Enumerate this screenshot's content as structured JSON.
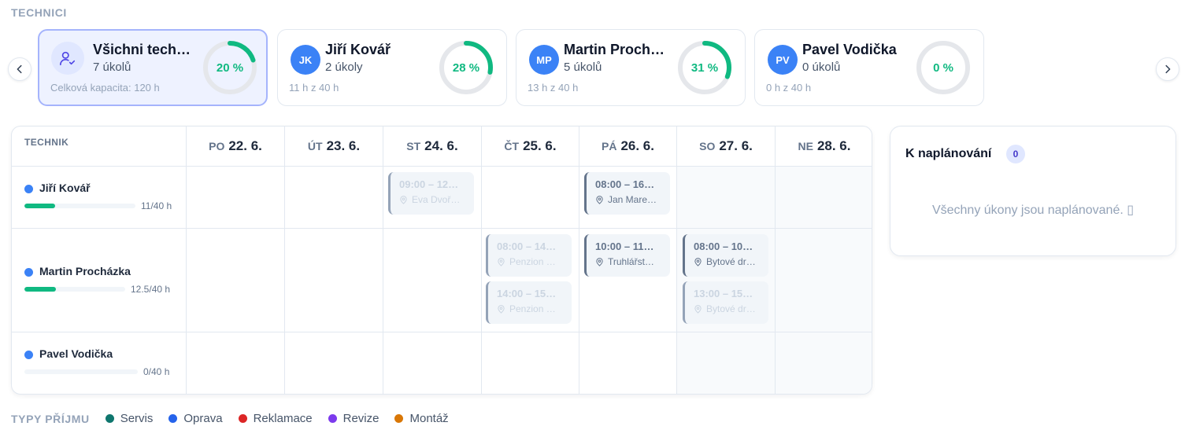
{
  "section_label": "TECHNICI",
  "colors": {
    "accent": "#3b82f6",
    "progress": "#10b981",
    "ring_track": "#e5e7eb"
  },
  "tech_cards": [
    {
      "name": "Všichni tech…",
      "tasks": "7 úkolů",
      "hours": "Celková kapacita: 120 h",
      "percent_label": "20 %",
      "percent": 20,
      "avatar": "users-check-icon"
    },
    {
      "name": "Jiří Kovář",
      "initials": "JK",
      "tasks": "2 úkoly",
      "hours": "11 h z 40 h",
      "percent_label": "28 %",
      "percent": 28
    },
    {
      "name": "Martin Prochá…",
      "initials": "MP",
      "tasks": "5 úkolů",
      "hours": "13 h z 40 h",
      "percent_label": "31 %",
      "percent": 31
    },
    {
      "name": "Pavel Vodička",
      "initials": "PV",
      "tasks": "0 úkolů",
      "hours": "0 h z 40 h",
      "percent_label": "0 %",
      "percent": 0
    }
  ],
  "schedule": {
    "tech_column_header": "TECHNIK",
    "days": [
      {
        "dow": "PO",
        "date": "22. 6."
      },
      {
        "dow": "ÚT",
        "date": "23. 6."
      },
      {
        "dow": "ST",
        "date": "24. 6."
      },
      {
        "dow": "ČT",
        "date": "25. 6."
      },
      {
        "dow": "PÁ",
        "date": "26. 6."
      },
      {
        "dow": "SO",
        "date": "27. 6."
      },
      {
        "dow": "NE",
        "date": "28. 6."
      }
    ],
    "rows": [
      {
        "name": "Jiří Kovář",
        "capacity": "11/40 h",
        "fill": 0.275
      },
      {
        "name": "Martin Procházka",
        "capacity": "12.5/40 h",
        "fill": 0.3125
      },
      {
        "name": "Pavel Vodička",
        "capacity": "0/40 h",
        "fill": 0
      }
    ],
    "events": [
      {
        "time": "09:00 – 12…",
        "location": "Eva Dvoř…"
      },
      {
        "time": "08:00 – 16…",
        "location": "Jan Mare…"
      },
      {
        "time": "08:00 – 14…",
        "location": "Penzion …"
      },
      {
        "time": "14:00 – 15…",
        "location": "Penzion …"
      },
      {
        "time": "10:00 – 11…",
        "location": "Truhlářst…"
      },
      {
        "time": "08:00 – 10…",
        "location": "Bytové dr…"
      },
      {
        "time": "13:00 – 15…",
        "location": "Bytové dr…"
      }
    ]
  },
  "unplanned": {
    "title": "K naplánování",
    "count": "0",
    "empty_text": "Všechny úkony jsou naplánované. ▯"
  },
  "legend": {
    "title": "TYPY PŘÍJMU",
    "items": [
      {
        "label": "Servis",
        "color": "#0f766e"
      },
      {
        "label": "Oprava",
        "color": "#2563eb"
      },
      {
        "label": "Reklamace",
        "color": "#dc2626"
      },
      {
        "label": "Revize",
        "color": "#7c3aed"
      },
      {
        "label": "Montáž",
        "color": "#d97706"
      }
    ]
  }
}
